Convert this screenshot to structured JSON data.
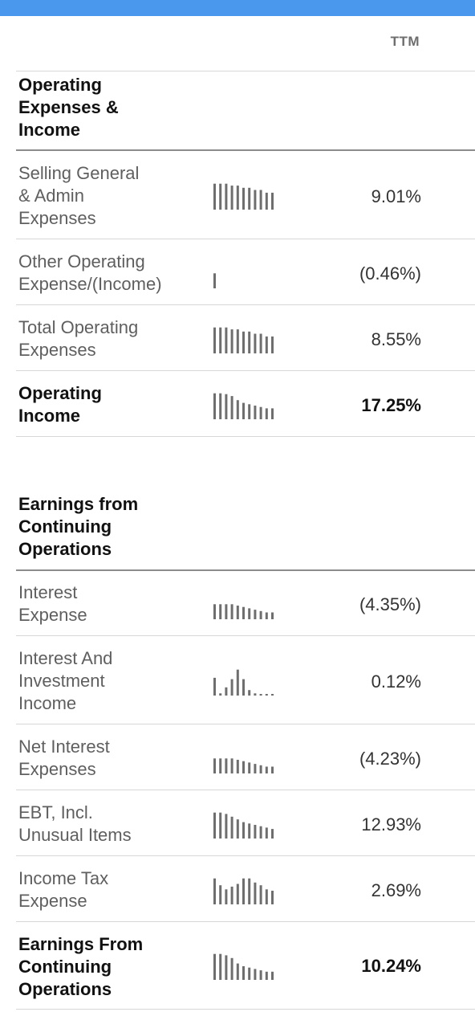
{
  "column_header": "TTM",
  "sections": [
    {
      "heading": "Operating\nExpenses &\nIncome",
      "rows": [
        {
          "label": "Selling General\n& Admin\nExpenses",
          "value": "9.01%",
          "bold": false,
          "spark": [
            0.95,
            0.95,
            0.95,
            0.88,
            0.88,
            0.8,
            0.8,
            0.72,
            0.72,
            0.62,
            0.62
          ]
        },
        {
          "label": "Other Operating\nExpense/(Income)",
          "value": "(0.46%)",
          "bold": false,
          "spark": [
            0.55
          ]
        },
        {
          "label": "Total Operating\nExpenses",
          "value": "8.55%",
          "bold": false,
          "spark": [
            0.95,
            0.95,
            0.95,
            0.88,
            0.88,
            0.8,
            0.8,
            0.72,
            0.72,
            0.62,
            0.62
          ]
        },
        {
          "label": "Operating\nIncome",
          "value": "17.25%",
          "bold": true,
          "spark": [
            0.95,
            0.95,
            0.92,
            0.85,
            0.7,
            0.6,
            0.55,
            0.5,
            0.45,
            0.4,
            0.4
          ]
        }
      ]
    },
    {
      "heading": "Earnings from\nContinuing\nOperations",
      "rows": [
        {
          "label": "Interest\nExpense",
          "value": "(4.35%)",
          "bold": false,
          "spark": [
            0.55,
            0.55,
            0.55,
            0.55,
            0.5,
            0.45,
            0.4,
            0.35,
            0.3,
            0.25,
            0.25
          ]
        },
        {
          "label": "Interest And\nInvestment\nIncome",
          "value": "0.12%",
          "bold": false,
          "spark": [
            0.65,
            0.08,
            0.3,
            0.6,
            0.95,
            0.6,
            0.2,
            0.08,
            0.05,
            0.05,
            0.05
          ]
        },
        {
          "label": "Net Interest\nExpenses",
          "value": "(4.23%)",
          "bold": false,
          "spark": [
            0.55,
            0.55,
            0.55,
            0.55,
            0.5,
            0.45,
            0.4,
            0.35,
            0.3,
            0.25,
            0.25
          ]
        },
        {
          "label": "EBT, Incl.\nUnusual Items",
          "value": "12.93%",
          "bold": false,
          "spark": [
            0.95,
            0.95,
            0.9,
            0.8,
            0.7,
            0.6,
            0.55,
            0.5,
            0.45,
            0.4,
            0.35
          ]
        },
        {
          "label": "Income Tax\nExpense",
          "value": "2.69%",
          "bold": false,
          "spark": [
            0.95,
            0.7,
            0.55,
            0.65,
            0.75,
            0.95,
            0.95,
            0.8,
            0.7,
            0.55,
            0.5
          ]
        },
        {
          "label": "Earnings From\nContinuing\nOperations",
          "value": "10.24%",
          "bold": true,
          "spark": [
            0.95,
            0.95,
            0.9,
            0.8,
            0.6,
            0.5,
            0.45,
            0.4,
            0.35,
            0.3,
            0.3
          ]
        }
      ]
    }
  ],
  "colors": {
    "accent_bar": "#4a97ee",
    "spark_bar": "#6e6e6e"
  }
}
